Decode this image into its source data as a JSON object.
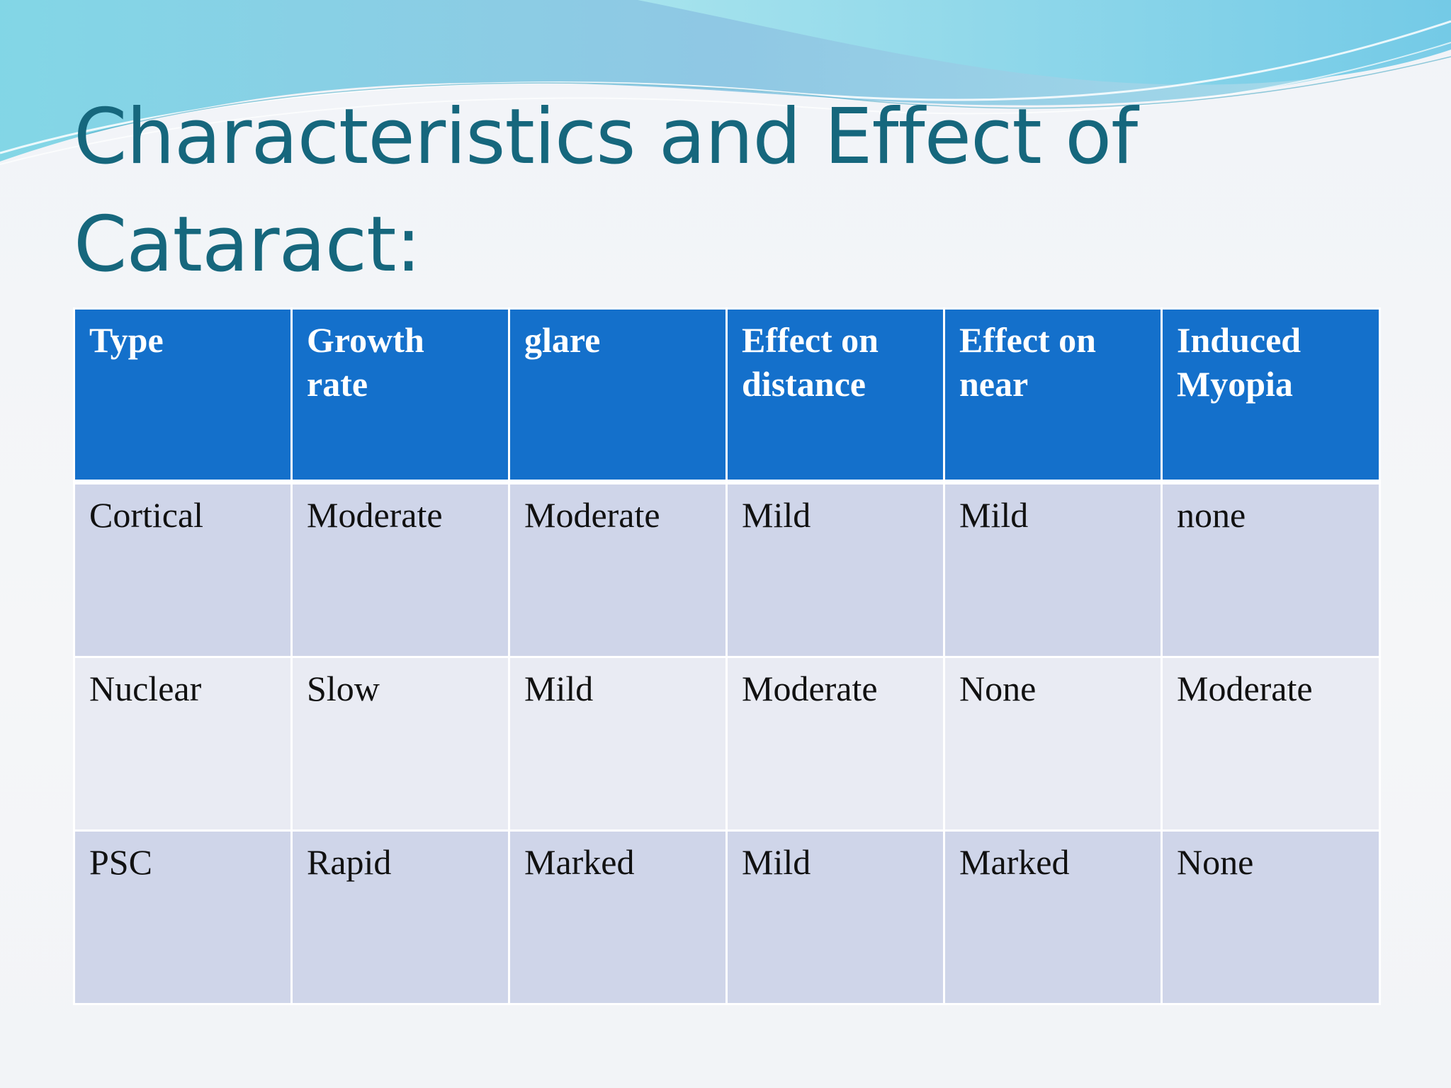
{
  "slide": {
    "title": "Characteristics and Effect of Cataract:"
  },
  "table": {
    "headers": [
      "Type",
      "Growth rate",
      "glare",
      "Effect on distance",
      "Effect on near",
      "Induced Myopia"
    ],
    "rows": [
      [
        "Cortical",
        "Moderate",
        "Moderate",
        "Mild",
        "Mild",
        "none"
      ],
      [
        "Nuclear",
        "Slow",
        "Mild",
        "Moderate",
        "None",
        "Moderate"
      ],
      [
        "PSC",
        "Rapid",
        "Marked",
        "Mild",
        "Marked",
        "None"
      ]
    ]
  },
  "colors": {
    "title": "#16677d",
    "header_background": "#1470cb",
    "row_odd": "#cfd5e9",
    "row_even": "#e9ebf3"
  }
}
